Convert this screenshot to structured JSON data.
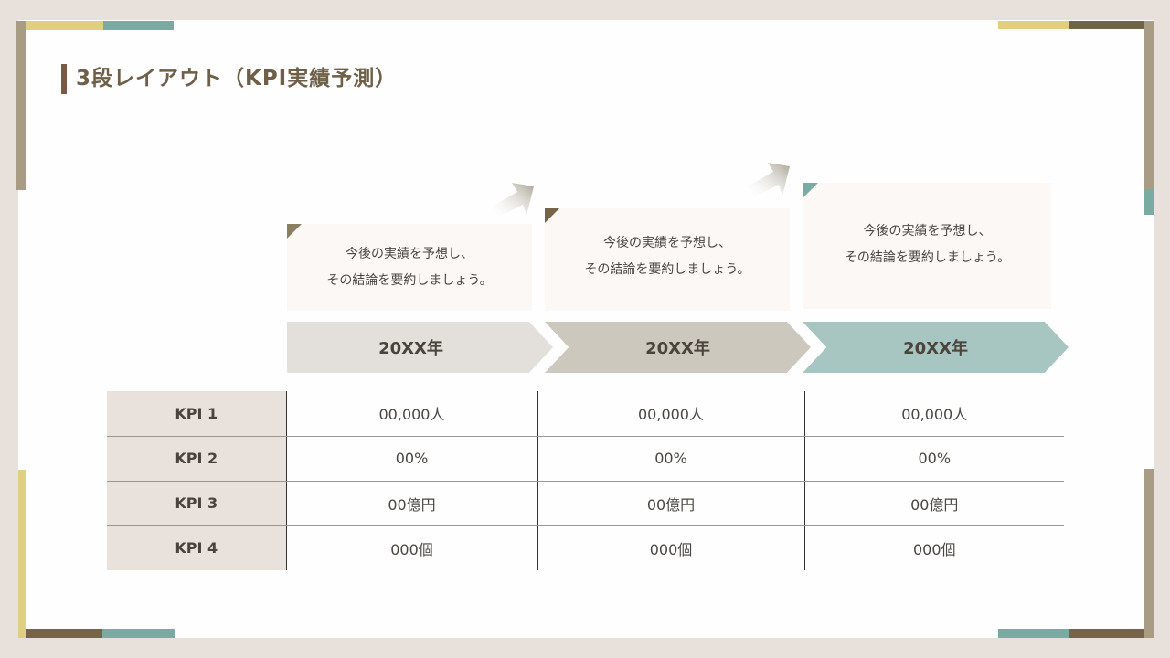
{
  "title": "3段レイアウト（KPI実績予測）",
  "colors": {
    "background": "#e8e1db",
    "accent_yellow": "#e0cf80",
    "accent_teal": "#7aaba2",
    "accent_olive": "#6e6448",
    "accent_tan": "#a89c84"
  },
  "columns": [
    {
      "year": "20XX年",
      "description_line1": "今後の実績を予想し、",
      "description_line2": "その結論を要約しましょう。",
      "color": "#e3e0dc",
      "corner_color": "#8a7f60"
    },
    {
      "year": "20XX年",
      "description_line1": "今後の実績を予想し、",
      "description_line2": "その結論を要約しましょう。",
      "color": "#cdc8be",
      "corner_color": "#756448"
    },
    {
      "year": "20XX年",
      "description_line1": "今後の実績を予想し、",
      "description_line2": "その結論を要約しましょう。",
      "color": "#a7c5c1",
      "corner_color": "#7aaba2"
    }
  ],
  "table": {
    "rows": [
      {
        "label": "KPI 1",
        "values": [
          "00,000人",
          "00,000人",
          "00,000人"
        ]
      },
      {
        "label": "KPI 2",
        "values": [
          "00%",
          "00%",
          "00%"
        ]
      },
      {
        "label": "KPI 3",
        "values": [
          "00億円",
          "00億円",
          "00億円"
        ]
      },
      {
        "label": "KPI 4",
        "values": [
          "000個",
          "000個",
          "000個"
        ]
      }
    ]
  }
}
